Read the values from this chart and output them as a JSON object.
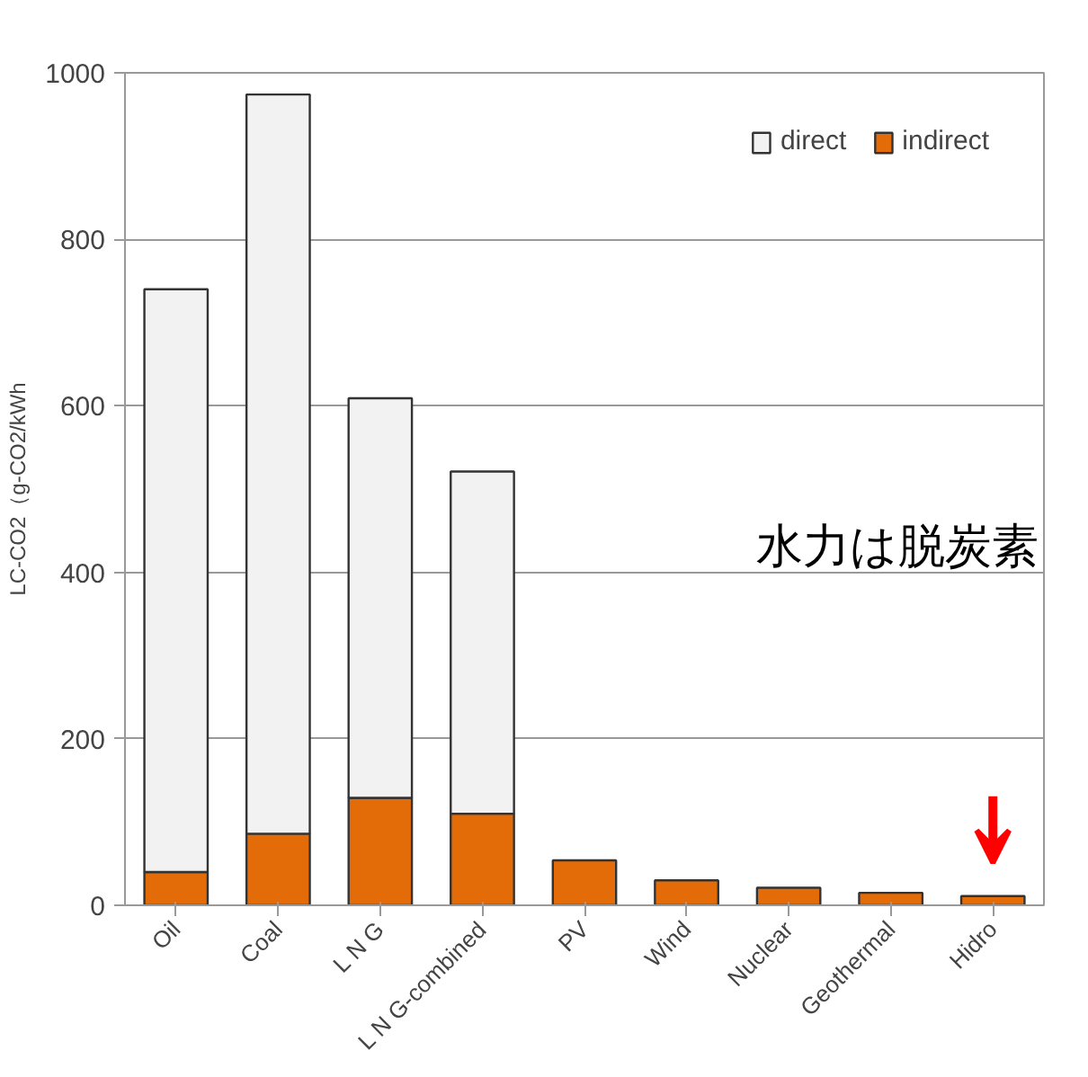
{
  "chart_data": {
    "type": "bar",
    "stacked": true,
    "ylabel": "LC-CO2（g-CO2/kWh",
    "categories": [
      "Oil",
      "Coal",
      "L N G",
      "L N G-combined",
      "PV",
      "Wind",
      "Nuclear",
      "Geothermal",
      "Hidro"
    ],
    "series": [
      {
        "name": "indirect",
        "color": "#e36c09",
        "values": [
          40,
          86,
          129,
          110,
          54,
          30,
          21,
          15,
          11
        ]
      },
      {
        "name": "direct",
        "color": "#f2f2f2",
        "values": [
          700,
          888,
          480,
          411,
          null,
          null,
          null,
          null,
          null
        ]
      }
    ],
    "ylim": [
      0,
      1000
    ],
    "yticks": [
      0,
      200,
      400,
      600,
      800,
      1000
    ],
    "grid": "y",
    "legend": "top right",
    "annotations": [
      "水力は脱炭素"
    ]
  }
}
